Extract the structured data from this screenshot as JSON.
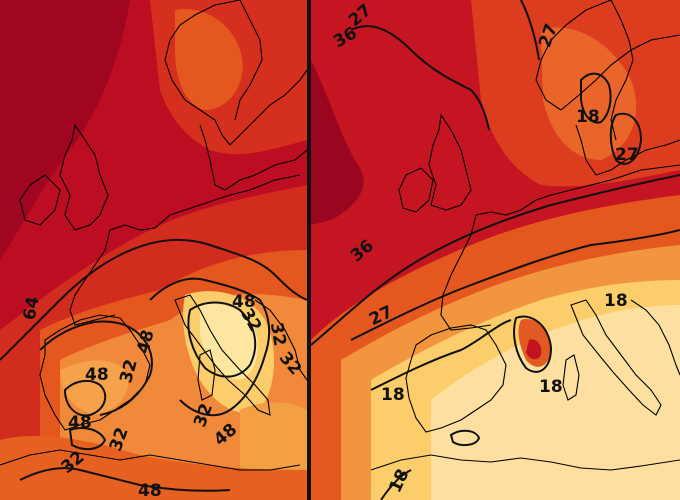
{
  "left_map": {
    "contour_labels": [
      "64",
      "48",
      "48",
      "48",
      "32",
      "32",
      "32",
      "48",
      "32",
      "32",
      "32",
      "48",
      "32",
      "48"
    ],
    "colors": {
      "dark": "#8f0020",
      "deep": "#b80a1f",
      "red": "#cf2a1e",
      "orange": "#e4581f",
      "light_orange": "#f08a3a",
      "yellow": "#fbcd6b",
      "pale": "#fde7a0"
    }
  },
  "right_map": {
    "contour_labels": [
      "36",
      "27",
      "27",
      "18",
      "27",
      "36",
      "27",
      "18",
      "18",
      "18",
      "18"
    ],
    "colors": {
      "dark": "#8f0020",
      "red": "#cf2a1e",
      "orange": "#e4581f",
      "light_orange": "#f2953f",
      "yellow": "#fbcd6b",
      "pale": "#fde9a8"
    }
  }
}
